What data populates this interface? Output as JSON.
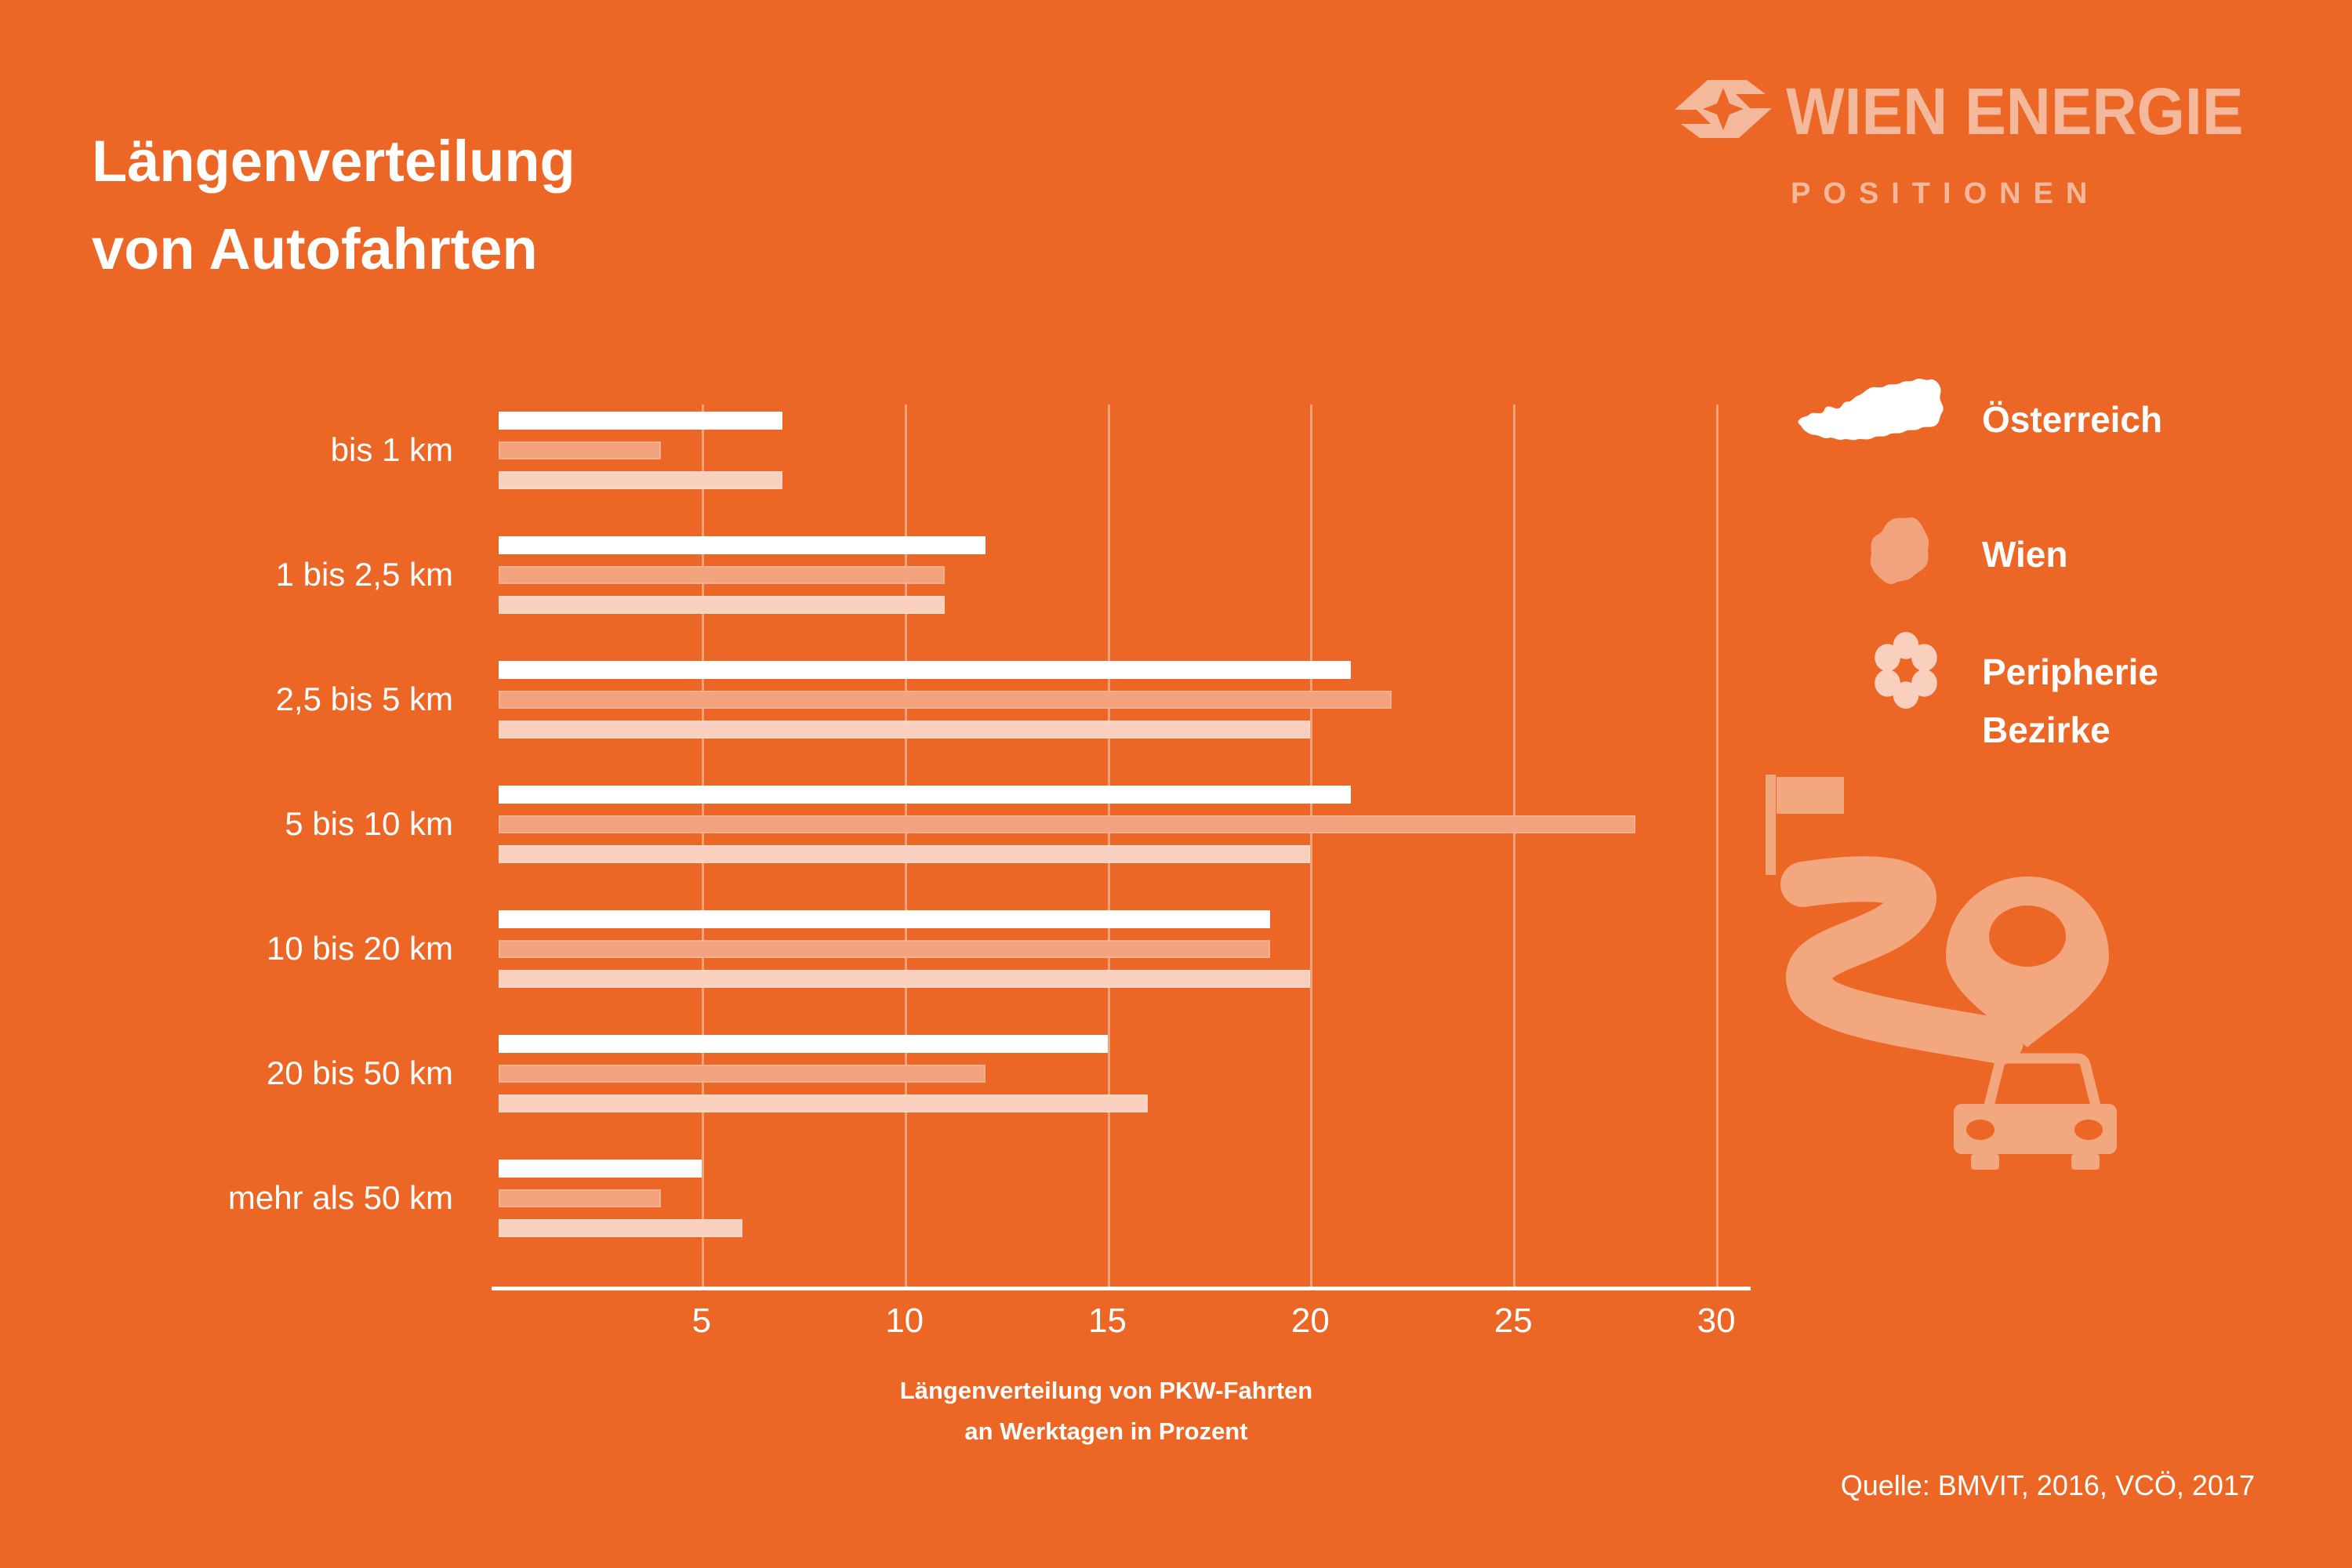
{
  "title": {
    "line1": "Längenverteilung",
    "line2": "von Autofahrten"
  },
  "logo": {
    "name": "WIEN ENERGIE",
    "sub": "POSITIONEN"
  },
  "legend": {
    "oesterreich": {
      "label": "Österreich"
    },
    "wien": {
      "label": "Wien"
    },
    "peripherie": {
      "line1": "Peripherie",
      "line2": "Bezirke"
    }
  },
  "chart_data": {
    "type": "bar",
    "orientation": "horizontal",
    "title": "Längenverteilung von Autofahrten",
    "categories": [
      "bis 1 km",
      "1 bis 2,5 km",
      "2,5 bis 5 km",
      "5 bis 10 km",
      "10 bis 20 km",
      "20 bis 50 km",
      "mehr als 50 km"
    ],
    "series": [
      {
        "id": "oesterreich",
        "name": "Österreich",
        "color": "#ffffff",
        "values": [
          7,
          12,
          21,
          21,
          19,
          15,
          5
        ]
      },
      {
        "id": "wien",
        "name": "Wien",
        "color": "#f2a37d",
        "values": [
          4,
          11,
          22,
          28,
          19,
          12,
          4
        ]
      },
      {
        "id": "peripherie-bezirke",
        "name": "Peripherie Bezirke",
        "color": "#f9d0bd",
        "values": [
          7,
          11,
          20,
          20,
          20,
          16,
          6
        ]
      }
    ],
    "xlabel": "Längenverteilung von PKW-Fahrten an Werktagen in Prozent",
    "xticks": [
      5,
      10,
      15,
      20,
      25,
      30
    ],
    "xlim": [
      0,
      31
    ],
    "grid": true,
    "legend_position": "right"
  },
  "caption": {
    "line1": "Längenverteilung von PKW-Fahrten",
    "line2": "an Werktagen in Prozent"
  },
  "source": "Quelle: BMVIT, 2016, VCÖ, 2017",
  "colors": {
    "bg": "#ec6726",
    "oesterreich": "#ffffff",
    "wien": "#f2a37d",
    "peripherie": "#f9d0bd",
    "logo": "#f4b89c",
    "ill": "#f2a77f",
    "text": "#ffffff",
    "grid": "#ffffff66"
  }
}
